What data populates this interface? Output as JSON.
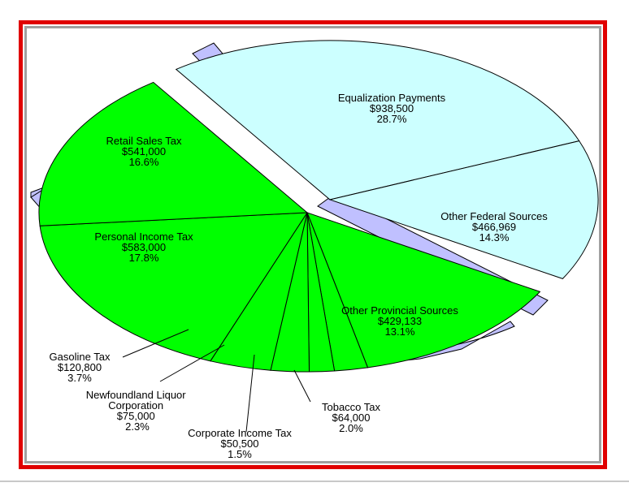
{
  "chart_data": {
    "type": "pie",
    "title": "",
    "slices": [
      {
        "label": "Equalization Payments",
        "amount": "$938,500",
        "percent": "28.7%",
        "value": 28.7,
        "color": "#ccffff",
        "exploded": true
      },
      {
        "label": "Other Federal Sources",
        "amount": "$466,969",
        "percent": "14.3%",
        "value": 14.3,
        "color": "#ccffff",
        "exploded": true
      },
      {
        "label": "Other Provincial Sources",
        "amount": "$429,133",
        "percent": "13.1%",
        "value": 13.1,
        "color": "#00ff00",
        "exploded": false
      },
      {
        "label": "Tobacco Tax",
        "amount": "$64,000",
        "percent": "2.0%",
        "value": 2.0,
        "color": "#00ff00",
        "exploded": false
      },
      {
        "label": "Corporate Income Tax",
        "amount": "$50,500",
        "percent": "1.5%",
        "value": 1.5,
        "color": "#00ff00",
        "exploded": false
      },
      {
        "label": "Newfoundland Liquor Corporation",
        "amount": "$75,000",
        "percent": "2.3%",
        "value": 2.3,
        "color": "#00ff00",
        "exploded": false
      },
      {
        "label": "Gasoline Tax",
        "amount": "$120,800",
        "percent": "3.7%",
        "value": 3.7,
        "color": "#00ff00",
        "exploded": false
      },
      {
        "label": "Personal Income Tax",
        "amount": "$583,000",
        "percent": "17.8%",
        "value": 17.8,
        "color": "#00ff00",
        "exploded": false
      },
      {
        "label": "Retail Sales Tax",
        "amount": "$541,000",
        "percent": "16.6%",
        "value": 16.6,
        "color": "#00ff00",
        "exploded": false
      }
    ],
    "three_d": true,
    "side_color": "#c0c0ff",
    "frame_color": "#e00000"
  }
}
